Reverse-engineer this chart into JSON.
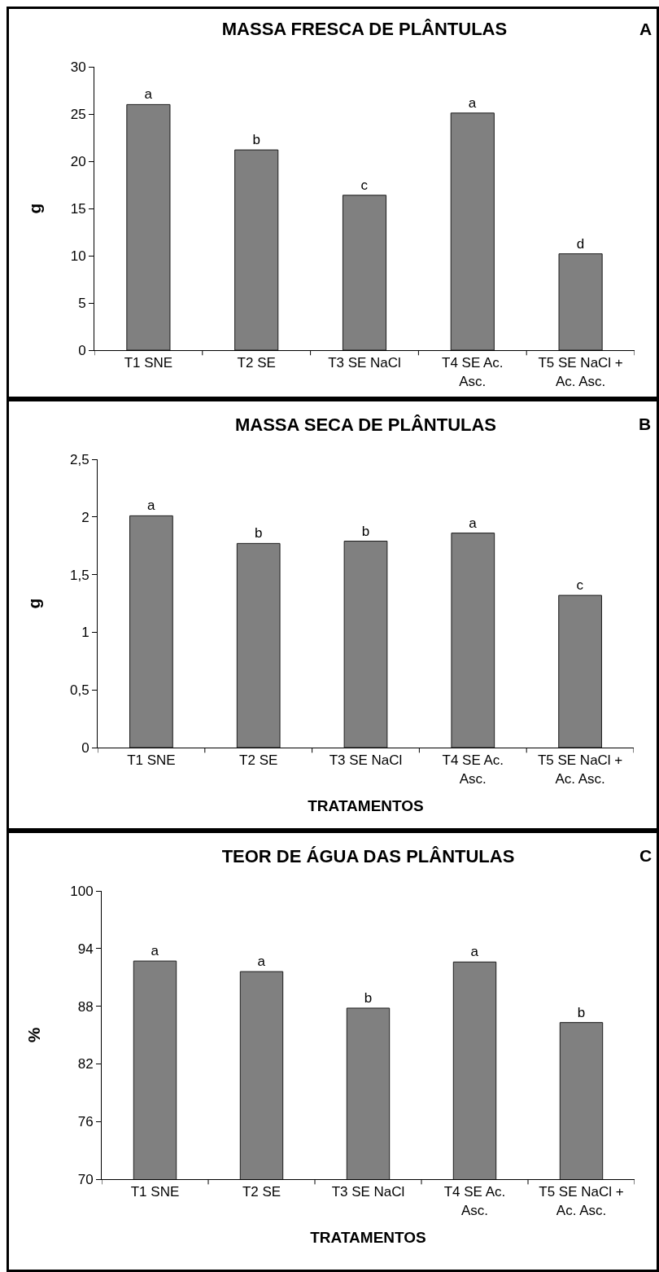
{
  "chart_data": [
    {
      "type": "bar",
      "title": "MASSA FRESCA DE PLÂNTULAS",
      "ylabel": "g",
      "annotations": [
        "A"
      ],
      "categories": [
        "T1 SNE",
        "T2 SE",
        "T3 SE NaCl",
        "T4 SE Ac. Asc.",
        "T5 SE NaCl + Ac. Asc."
      ],
      "values": [
        26,
        21.2,
        16.4,
        25.1,
        10.2
      ],
      "value_labels": [
        "a",
        "b",
        "c",
        "a",
        "d"
      ],
      "color": "#808080",
      "ylim": [
        0,
        30
      ],
      "yticks": [
        0,
        5,
        10,
        15,
        20,
        25,
        30
      ]
    },
    {
      "type": "bar",
      "title": "MASSA SECA DE PLÂNTULAS",
      "ylabel": "g",
      "xlabel": "TRATAMENTOS",
      "annotations": [
        "B"
      ],
      "categories": [
        "T1 SNE",
        "T2 SE",
        "T3 SE NaCl",
        "T4 SE Ac. Asc.",
        "T5 SE NaCl + Ac. Asc."
      ],
      "values": [
        2.01,
        1.77,
        1.79,
        1.86,
        1.32
      ],
      "value_labels": [
        "a",
        "b",
        "b",
        "a",
        "c"
      ],
      "color": "#808080",
      "ylim": [
        0,
        2.5
      ],
      "yticks": [
        0,
        {
          "value": 0.5,
          "label": "0,5"
        },
        1,
        {
          "value": 1.5,
          "label": "1,5"
        },
        2,
        {
          "value": 2.5,
          "label": "2,5"
        }
      ]
    },
    {
      "type": "bar",
      "title": "TEOR DE ÁGUA DAS PLÂNTULAS",
      "ylabel": "%",
      "xlabel": "TRATAMENTOS",
      "annotations": [
        "C"
      ],
      "categories": [
        "T1 SNE",
        "T2 SE",
        "T3 SE NaCl",
        "T4 SE Ac. Asc.",
        "T5 SE NaCl + Ac. Asc."
      ],
      "values": [
        92.7,
        91.6,
        87.8,
        92.6,
        86.3
      ],
      "value_labels": [
        "a",
        "a",
        "b",
        "a",
        "b"
      ],
      "color": "#808080",
      "ylim": [
        70,
        100
      ],
      "yticks": [
        70,
        76,
        82,
        88,
        94,
        100
      ]
    }
  ]
}
